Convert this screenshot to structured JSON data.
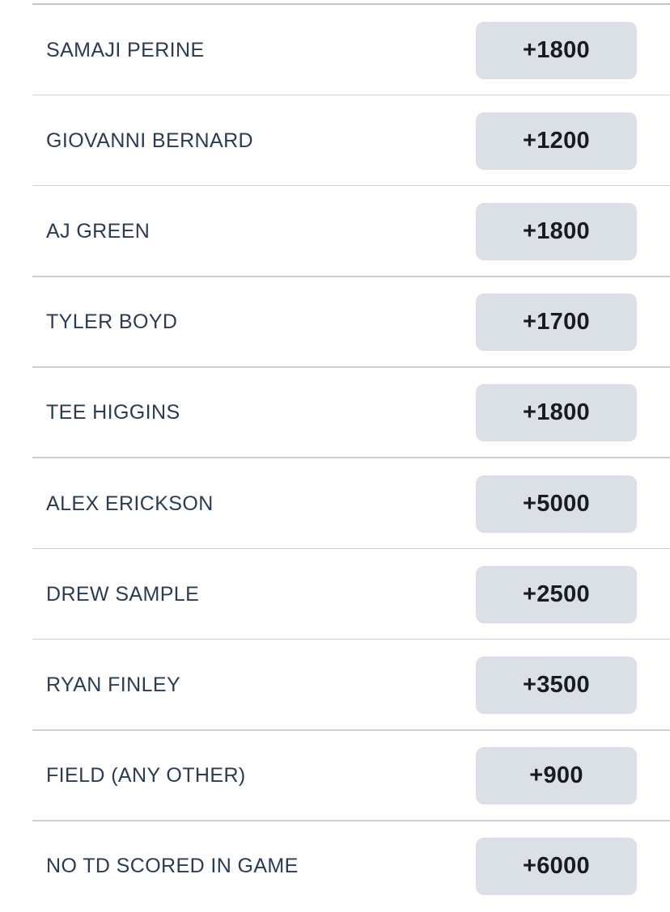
{
  "colors": {
    "background": "#ffffff",
    "top_line": "#c4c5c8",
    "divider": "#cdcfd2",
    "row_name": "#2c3b52",
    "odds_button_bg": "#dbdfe6",
    "odds_text": "#171b24"
  },
  "odds_list": {
    "rows": [
      {
        "selection": "SAMAJI PERINE",
        "odds": "+1800"
      },
      {
        "selection": "GIOVANNI BERNARD",
        "odds": "+1200"
      },
      {
        "selection": "AJ GREEN",
        "odds": "+1800"
      },
      {
        "selection": "TYLER BOYD",
        "odds": "+1700"
      },
      {
        "selection": "TEE HIGGINS",
        "odds": "+1800"
      },
      {
        "selection": "ALEX ERICKSON",
        "odds": "+5000"
      },
      {
        "selection": "DREW SAMPLE",
        "odds": "+2500"
      },
      {
        "selection": "RYAN FINLEY",
        "odds": "+3500"
      },
      {
        "selection": "FIELD (ANY OTHER)",
        "odds": "+900"
      },
      {
        "selection": "NO TD SCORED IN GAME",
        "odds": "+6000"
      }
    ]
  }
}
